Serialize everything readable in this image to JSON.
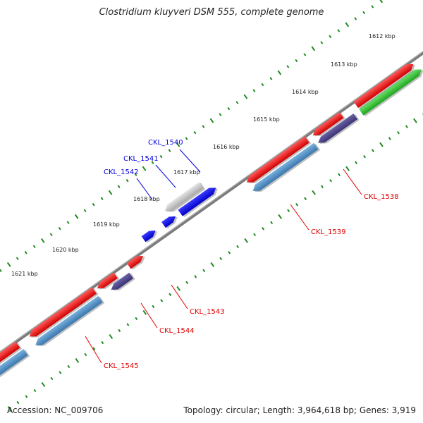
{
  "title": "Clostridium kluyveri DSM 555, complete genome",
  "footer": {
    "accession": "Accession: NC_009706",
    "stats": "Topology: circular; Length: 3,964,618 bp; Genes: 3,919"
  },
  "colors": {
    "backbone": "#7a7a7a",
    "tick": "#1f8a1f",
    "label_red": "#e00000",
    "label_blue": "#0000dd"
  },
  "kbp_labels": [
    "1612 kbp",
    "1613 kbp",
    "1614 kbp",
    "1615 kbp",
    "1616 kbp",
    "1617 kbp",
    "1618 kbp",
    "1619 kbp",
    "1620 kbp",
    "1621 kbp"
  ],
  "genes": [
    {
      "name": "CKL_1538",
      "color": "#e00000"
    },
    {
      "name": "CKL_1539",
      "color": "#e00000"
    },
    {
      "name": "CKL_1540",
      "color": "#0000dd"
    },
    {
      "name": "CKL_1541",
      "color": "#0000dd"
    },
    {
      "name": "CKL_1542",
      "color": "#0000dd"
    },
    {
      "name": "CKL_1543",
      "color": "#e00000"
    },
    {
      "name": "CKL_1544",
      "color": "#e00000"
    },
    {
      "name": "CKL_1545",
      "color": "#e00000"
    }
  ]
}
